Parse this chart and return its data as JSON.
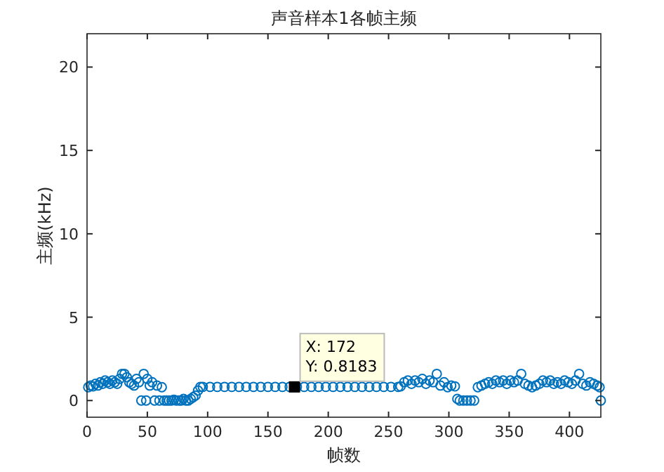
{
  "chart_data": {
    "type": "scatter",
    "title": "声音样本1各帧主频",
    "xlabel": "帧数",
    "ylabel": "主频(kHz)",
    "xlim": [
      0,
      426
    ],
    "ylim": [
      -1,
      22
    ],
    "xticks": [
      0,
      50,
      100,
      150,
      200,
      250,
      300,
      350,
      400
    ],
    "yticks": [
      0,
      5,
      10,
      15,
      20
    ],
    "marker": "circle",
    "annotations": [
      {
        "text": "X: 172\nY: 0.8183",
        "x": 172,
        "y": 0.8183
      }
    ],
    "series": [
      {
        "color": "#0072bd",
        "x": [
          1,
          3,
          5,
          7,
          9,
          11,
          13,
          15,
          17,
          19,
          21,
          23,
          25,
          27,
          29,
          31,
          33,
          35,
          37,
          39,
          41,
          43,
          45,
          47,
          49,
          50,
          52,
          54,
          56,
          58,
          60,
          62,
          64,
          66,
          68,
          70,
          72,
          74,
          76,
          78,
          80,
          82,
          84,
          86,
          88,
          90,
          92,
          94,
          96,
          102,
          108,
          114,
          120,
          126,
          132,
          138,
          144,
          150,
          156,
          162,
          168,
          172,
          174,
          180,
          186,
          192,
          198,
          204,
          210,
          216,
          222,
          228,
          234,
          240,
          246,
          252,
          258,
          260,
          263,
          266,
          269,
          272,
          275,
          278,
          281,
          284,
          287,
          290,
          293,
          296,
          299,
          302,
          305,
          307,
          309,
          312,
          315,
          318,
          321,
          324,
          327,
          330,
          333,
          336,
          339,
          342,
          345,
          348,
          351,
          354,
          357,
          360,
          363,
          366,
          369,
          372,
          375,
          378,
          381,
          384,
          387,
          390,
          393,
          396,
          399,
          402,
          405,
          408,
          411,
          414,
          417,
          420,
          423,
          425,
          426
        ],
        "values": [
          0.8,
          0.9,
          0.85,
          1.0,
          0.9,
          1.1,
          1.0,
          1.2,
          1.1,
          1.0,
          1.2,
          1.1,
          1.0,
          1.3,
          1.6,
          1.6,
          1.4,
          1.1,
          1.0,
          0.9,
          1.3,
          1.1,
          0,
          1.6,
          0,
          1.3,
          0.9,
          1.1,
          0,
          0.9,
          0,
          0.8,
          0,
          0,
          0,
          0,
          0.05,
          0,
          0,
          0,
          0.1,
          0,
          0,
          0.1,
          0.2,
          0.3,
          0.6,
          0.8183,
          0.8183,
          0.8183,
          0.8183,
          0.8183,
          0.8183,
          0.8183,
          0.8183,
          0.8183,
          0.8183,
          0.8183,
          0.8183,
          0.8183,
          0.8183,
          0.8183,
          0.8183,
          0.8183,
          0.8183,
          0.8183,
          0.8183,
          0.8183,
          0.8183,
          0.8183,
          0.8183,
          0.8183,
          0.8183,
          0.8183,
          0.8183,
          0.8183,
          0.8183,
          0.85,
          1.1,
          1.2,
          1.0,
          1.2,
          1.1,
          1.3,
          1.0,
          1.2,
          1.1,
          1.6,
          0.9,
          1.1,
          0.8,
          0.9,
          0.85,
          0.1,
          0,
          0,
          0,
          0,
          0,
          0.8,
          0.9,
          1.0,
          1.1,
          1.0,
          1.2,
          1.1,
          1.2,
          1.0,
          1.2,
          1.1,
          1.2,
          1.6,
          1.0,
          0.9,
          0.8,
          0.9,
          1.0,
          1.2,
          1.1,
          1.2,
          1.0,
          1.1,
          1.0,
          1.2,
          1.1,
          1.0,
          1.2,
          1.6,
          1.0,
          0.9,
          1.1,
          1.0,
          0.9,
          0.8,
          0
        ]
      }
    ]
  }
}
